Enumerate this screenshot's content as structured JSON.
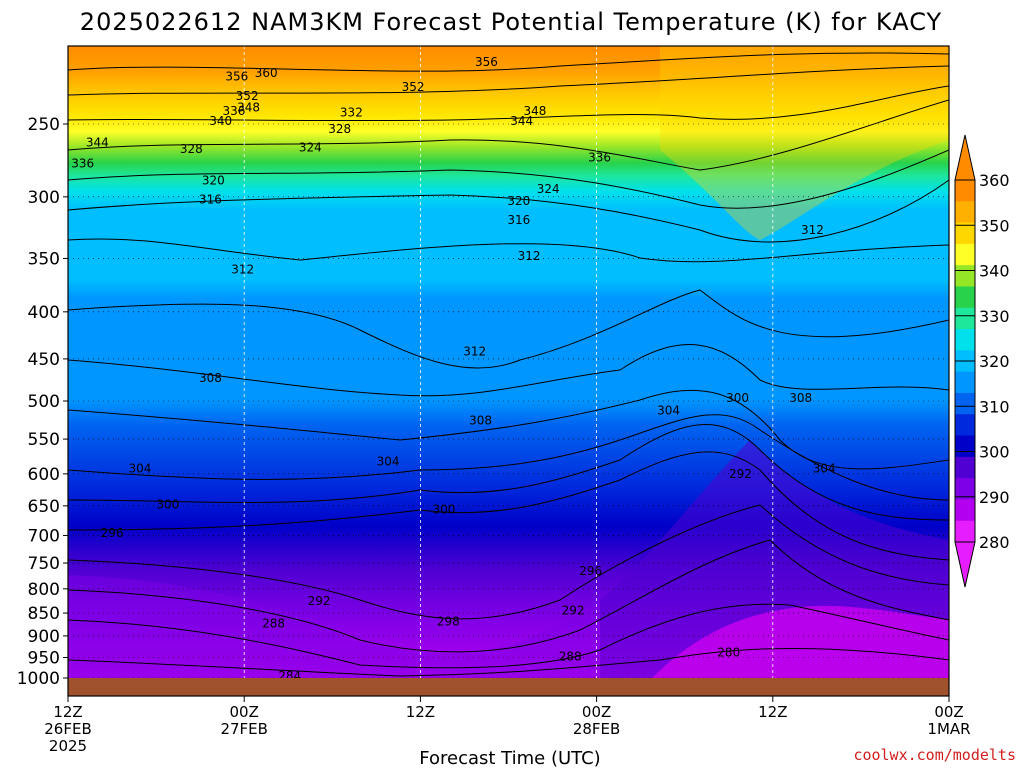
{
  "chart_data": {
    "type": "heatmap",
    "title": "2025022612 NAM3KM Forecast Potential Temperature (K) for KACY",
    "xlabel": "Forecast Time (UTC)",
    "ylabel": "",
    "x_ticks": [
      {
        "hour": 0,
        "lines": [
          "12Z",
          "26FEB",
          "2025"
        ]
      },
      {
        "hour": 12,
        "lines": [
          "00Z",
          "27FEB"
        ]
      },
      {
        "hour": 24,
        "lines": [
          "12Z"
        ]
      },
      {
        "hour": 36,
        "lines": [
          "00Z",
          "28FEB"
        ]
      },
      {
        "hour": 48,
        "lines": [
          "12Z"
        ]
      },
      {
        "hour": 60,
        "lines": [
          "00Z",
          "1MAR"
        ]
      }
    ],
    "xlim_hours": [
      0,
      60
    ],
    "y_ticks": [
      "250",
      "300",
      "350",
      "400",
      "450",
      "500",
      "550",
      "600",
      "650",
      "700",
      "750",
      "800",
      "850",
      "900",
      "950",
      "1000"
    ],
    "ylim_hPa": [
      1000,
      200
    ],
    "grid": true,
    "colorbar": {
      "ticks": [
        "360",
        "350",
        "340",
        "330",
        "320",
        "310",
        "300",
        "290",
        "280"
      ],
      "colors": [
        "#ff8c00",
        "#ffb000",
        "#ffd700",
        "#ffff28",
        "#96e628",
        "#28d24b",
        "#1ee69b",
        "#00e1eb",
        "#00beff",
        "#0096ff",
        "#0064f0",
        "#0028dc",
        "#0000c8",
        "#5000d2",
        "#7d00e6",
        "#b400f0",
        "#e61eff"
      ],
      "min": 280,
      "max": 360
    },
    "contour_labels": [
      {
        "text": "356",
        "hour": 11.5,
        "p": 222
      },
      {
        "text": "360",
        "hour": 13.5,
        "p": 220
      },
      {
        "text": "352",
        "hour": 12.2,
        "p": 233
      },
      {
        "text": "348",
        "hour": 12.3,
        "p": 240
      },
      {
        "text": "340",
        "hour": 10.4,
        "p": 248
      },
      {
        "text": "336",
        "hour": 11.3,
        "p": 242
      },
      {
        "text": "324",
        "hour": 16.5,
        "p": 265
      },
      {
        "text": "328",
        "hour": 18.5,
        "p": 253
      },
      {
        "text": "332",
        "hour": 19.3,
        "p": 243
      },
      {
        "text": "344",
        "hour": 2,
        "p": 262
      },
      {
        "text": "336",
        "hour": 1,
        "p": 276
      },
      {
        "text": "328",
        "hour": 8.4,
        "p": 266
      },
      {
        "text": "320",
        "hour": 9.9,
        "p": 288
      },
      {
        "text": "316",
        "hour": 9.7,
        "p": 302
      },
      {
        "text": "312",
        "hour": 11.9,
        "p": 360
      },
      {
        "text": "352",
        "hour": 23.5,
        "p": 228
      },
      {
        "text": "356",
        "hour": 28.5,
        "p": 214
      },
      {
        "text": "344",
        "hour": 30.9,
        "p": 248
      },
      {
        "text": "348",
        "hour": 31.8,
        "p": 242
      },
      {
        "text": "336",
        "hour": 36.2,
        "p": 272
      },
      {
        "text": "324",
        "hour": 32.7,
        "p": 294
      },
      {
        "text": "320",
        "hour": 30.7,
        "p": 303
      },
      {
        "text": "316",
        "hour": 30.7,
        "p": 318
      },
      {
        "text": "312",
        "hour": 31.4,
        "p": 348
      },
      {
        "text": "312",
        "hour": 50.7,
        "p": 326
      },
      {
        "text": "312",
        "hour": 27.7,
        "p": 442
      },
      {
        "text": "308",
        "hour": 9.7,
        "p": 472
      },
      {
        "text": "308",
        "hour": 28.1,
        "p": 525
      },
      {
        "text": "304",
        "hour": 21.8,
        "p": 582
      },
      {
        "text": "304",
        "hour": 4.9,
        "p": 592
      },
      {
        "text": "304",
        "hour": 40.9,
        "p": 512
      },
      {
        "text": "300",
        "hour": 45.6,
        "p": 496
      },
      {
        "text": "308",
        "hour": 49.9,
        "p": 496
      },
      {
        "text": "304",
        "hour": 51.5,
        "p": 592
      },
      {
        "text": "292",
        "hour": 45.8,
        "p": 600
      },
      {
        "text": "300",
        "hour": 6.8,
        "p": 648
      },
      {
        "text": "300",
        "hour": 25.6,
        "p": 656
      },
      {
        "text": "296",
        "hour": 3,
        "p": 696
      },
      {
        "text": "296",
        "hour": 35.6,
        "p": 765
      },
      {
        "text": "292",
        "hour": 17.1,
        "p": 825
      },
      {
        "text": "292",
        "hour": 34.4,
        "p": 845
      },
      {
        "text": "288",
        "hour": 14,
        "p": 873
      },
      {
        "text": "288",
        "hour": 34.2,
        "p": 948
      },
      {
        "text": "298",
        "hour": 25.9,
        "p": 868
      },
      {
        "text": "280",
        "hour": 45,
        "p": 938
      },
      {
        "text": "284",
        "hour": 15.1,
        "p": 995
      }
    ]
  },
  "credit": "coolwx.com/modelts"
}
